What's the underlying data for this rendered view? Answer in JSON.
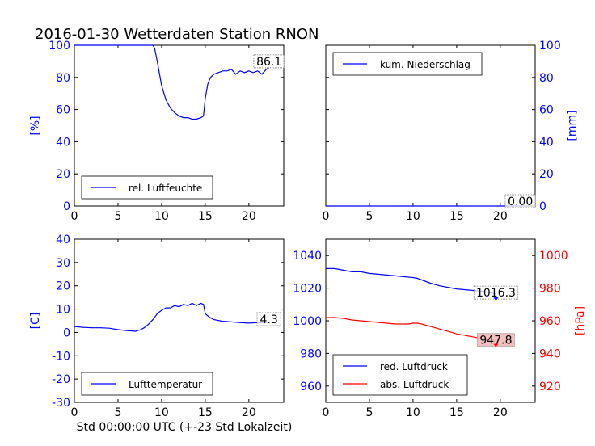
{
  "title": "2016-01-30 Wetterdaten Station RNON",
  "xlabel": "Std 00:00:00 UTC (+-23 Std Lokalzeit)",
  "colors": {
    "blue": "#0000ff",
    "red": "#ff0000",
    "axis": "#000000",
    "last_value_box_red": "#f4b8b8"
  },
  "chart_data": [
    {
      "id": "humidity",
      "type": "line",
      "ylabel": "[%]",
      "xlim": [
        0,
        24
      ],
      "ylim": [
        0,
        100
      ],
      "xticks": [
        0,
        5,
        10,
        15,
        20
      ],
      "yticks": [
        0,
        20,
        40,
        60,
        80,
        100
      ],
      "tick_color": "#0000ff",
      "legend_position": "lower-left",
      "last_value_label": "86.1",
      "series": [
        {
          "name": "rel. Luftfeuchte",
          "color": "#0000ff",
          "x": [
            0,
            2,
            4,
            6,
            8,
            9,
            9.2,
            9.5,
            10,
            10.5,
            11,
            11.5,
            12,
            12.5,
            13,
            13.5,
            14,
            14.5,
            14.8,
            15,
            15.3,
            15.6,
            16,
            16.5,
            17,
            17.5,
            18,
            18.5,
            19,
            19.5,
            20,
            20.5,
            21,
            21.5,
            22,
            22.3
          ],
          "y": [
            100,
            100,
            100,
            100,
            100,
            100,
            98,
            90,
            75,
            66,
            61,
            58,
            56,
            55,
            55,
            54,
            54,
            55,
            56,
            67,
            76,
            80,
            82,
            83,
            84,
            84,
            85,
            82,
            84,
            83,
            84,
            83,
            84,
            82,
            85,
            86
          ]
        }
      ]
    },
    {
      "id": "precip",
      "type": "line",
      "ylabel": "[mm]",
      "xlim": [
        0,
        24
      ],
      "ylim": [
        0,
        100
      ],
      "xticks": [
        0,
        5,
        10,
        15,
        20
      ],
      "yticks": [
        0,
        20,
        40,
        60,
        80,
        100
      ],
      "tick_color": "#0000ff",
      "y_axis_side": "right",
      "legend_position": "upper-left",
      "last_value_label": "0.00",
      "series": [
        {
          "name": "kum. Niederschlag",
          "color": "#0000ff",
          "x": [
            0,
            22.3
          ],
          "y": [
            0,
            0
          ]
        }
      ]
    },
    {
      "id": "temperature",
      "type": "line",
      "ylabel": "[C]",
      "xlim": [
        0,
        24
      ],
      "ylim": [
        -30,
        40
      ],
      "xticks": [
        0,
        5,
        10,
        15,
        20
      ],
      "yticks": [
        -30,
        -20,
        -10,
        0,
        10,
        20,
        30,
        40
      ],
      "tick_color": "#0000ff",
      "legend_position": "lower-left",
      "last_value_label": "4.3",
      "series": [
        {
          "name": "Lufttemperatur",
          "color": "#0000ff",
          "x": [
            0,
            1,
            2,
            3,
            4,
            5,
            6,
            7,
            7.5,
            8,
            8.5,
            9,
            9.5,
            10,
            10.5,
            11,
            11.5,
            12,
            12.5,
            13,
            13.5,
            14,
            14.5,
            14.8,
            15,
            15.5,
            16,
            17,
            18,
            19,
            20,
            21,
            22,
            22.3
          ],
          "y": [
            2.5,
            2.2,
            2.0,
            2.0,
            1.8,
            1.2,
            0.8,
            0.5,
            1.0,
            2.0,
            3.5,
            5.5,
            8.0,
            9.5,
            10.5,
            10.5,
            11.5,
            11.0,
            12.0,
            11.5,
            12.5,
            11.5,
            12.5,
            12.0,
            8.0,
            6.5,
            5.5,
            4.8,
            4.5,
            4.2,
            4.0,
            4.2,
            4.3,
            4.3
          ]
        }
      ]
    },
    {
      "id": "pressure",
      "type": "line",
      "ylabel": "[hPa]",
      "xlim": [
        0,
        24
      ],
      "ylim": [
        950,
        1050
      ],
      "xticks": [
        0,
        5,
        10,
        15,
        20
      ],
      "yticks": [
        960,
        980,
        1000,
        1020,
        1040
      ],
      "tick_color": "#0000ff",
      "secondary_ylim": [
        910,
        1010
      ],
      "secondary_yticks": [
        920,
        940,
        960,
        980,
        1000
      ],
      "secondary_tick_color": "#ff0000",
      "legend_position": "lower-left",
      "last_value_labels": [
        "1016.3",
        "947.8"
      ],
      "series": [
        {
          "name": "red. Luftdruck",
          "color": "#0000ff",
          "axis": "left",
          "x": [
            0,
            1,
            2,
            3,
            4,
            5,
            6,
            7,
            8,
            9,
            10,
            10.5,
            11,
            11.5,
            12,
            13,
            14,
            15,
            16,
            17,
            18,
            19,
            19.5
          ],
          "y": [
            1032,
            1032,
            1031,
            1030,
            1030,
            1029,
            1028.5,
            1028,
            1027.5,
            1027,
            1026.5,
            1026,
            1025,
            1024,
            1023,
            1021.5,
            1020.5,
            1019.5,
            1019,
            1018.5,
            1018,
            1017,
            1016.3
          ]
        },
        {
          "name": "abs. Luftdruck",
          "color": "#ff0000",
          "axis": "right",
          "x": [
            0,
            1,
            2,
            3,
            4,
            5,
            6,
            7,
            8,
            9,
            9.5,
            10,
            10.5,
            11,
            12,
            13,
            14,
            15,
            16,
            17,
            18,
            19,
            19.5
          ],
          "y": [
            962,
            962,
            961.5,
            960.5,
            960,
            959.5,
            959,
            958.5,
            958,
            958,
            958,
            958.5,
            958.5,
            958,
            956.5,
            955,
            953.5,
            952,
            951,
            950,
            949,
            948.5,
            947.8
          ]
        }
      ]
    }
  ]
}
